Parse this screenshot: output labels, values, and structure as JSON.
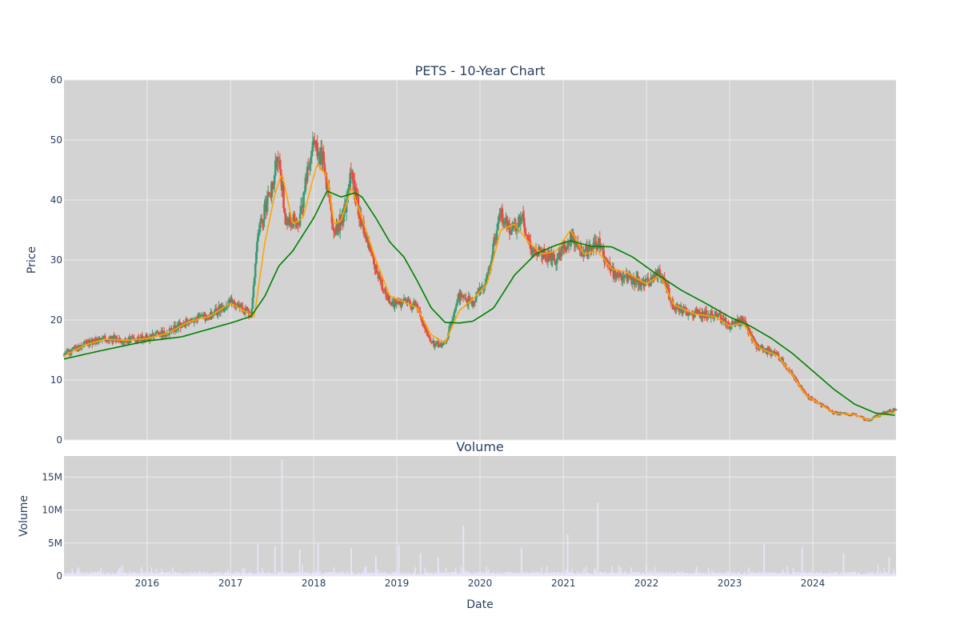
{
  "chart_data": [
    {
      "type": "candlestick",
      "title": "PETS - 10-Year Chart",
      "xlabel": "",
      "ylabel": "Price",
      "ylim": [
        0,
        60
      ],
      "y_ticks": [
        0,
        10,
        20,
        30,
        40,
        50,
        60
      ],
      "x_range": [
        "2015-01-01",
        "2024-12-31"
      ],
      "grid": true,
      "colors": {
        "plot_bg": "#d3d3d3",
        "gridline": "#ebebeb",
        "increasing": "#3d9970",
        "decreasing": "#e74c3c",
        "ma_short": "#ffa500",
        "ma_long": "#008000"
      },
      "series": [
        {
          "values": [
            [
              "2015-01-01",
              14.2
            ],
            [
              "2015-04-01",
              16.0
            ],
            [
              "2015-07-01",
              17.0
            ],
            [
              "2015-10-01",
              16.5
            ],
            [
              "2016-01-01",
              17.0
            ],
            [
              "2016-04-01",
              18.0
            ],
            [
              "2016-07-01",
              20.0
            ],
            [
              "2016-10-01",
              20.5
            ],
            [
              "2017-01-01",
              23.0
            ],
            [
              "2017-04-01",
              21.0
            ],
            [
              "2017-05-01",
              35.0
            ],
            [
              "2017-07-01",
              42.0
            ],
            [
              "2017-08-01",
              48.0
            ],
            [
              "2017-09-01",
              36.0
            ],
            [
              "2017-11-01",
              37.0
            ],
            [
              "2018-01-01",
              50.0
            ],
            [
              "2018-02-15",
              46.0
            ],
            [
              "2018-04-01",
              34.0
            ],
            [
              "2018-05-15",
              38.0
            ],
            [
              "2018-06-15",
              44.0
            ],
            [
              "2018-08-01",
              36.0
            ],
            [
              "2018-10-01",
              28.0
            ],
            [
              "2018-12-01",
              23.0
            ],
            [
              "2019-02-01",
              23.0
            ],
            [
              "2019-04-01",
              22.0
            ],
            [
              "2019-06-01",
              16.0
            ],
            [
              "2019-08-01",
              16.0
            ],
            [
              "2019-10-01",
              24.0
            ],
            [
              "2019-12-01",
              23.0
            ],
            [
              "2020-02-01",
              27.0
            ],
            [
              "2020-04-01",
              38.0
            ],
            [
              "2020-05-15",
              35.0
            ],
            [
              "2020-07-01",
              37.0
            ],
            [
              "2020-08-15",
              32.0
            ],
            [
              "2020-10-01",
              31.0
            ],
            [
              "2020-12-01",
              30.0
            ],
            [
              "2021-02-01",
              34.0
            ],
            [
              "2021-04-01",
              31.0
            ],
            [
              "2021-06-01",
              33.0
            ],
            [
              "2021-08-01",
              28.0
            ],
            [
              "2021-10-01",
              27.0
            ],
            [
              "2022-01-01",
              26.0
            ],
            [
              "2022-03-01",
              28.0
            ],
            [
              "2022-05-01",
              22.0
            ],
            [
              "2022-08-01",
              21.0
            ],
            [
              "2022-11-01",
              21.0
            ],
            [
              "2023-01-01",
              19.0
            ],
            [
              "2023-03-01",
              20.0
            ],
            [
              "2023-05-01",
              15.5
            ],
            [
              "2023-08-01",
              14.0
            ],
            [
              "2023-10-01",
              11.0
            ],
            [
              "2023-12-01",
              7.5
            ],
            [
              "2024-02-01",
              6.0
            ],
            [
              "2024-04-01",
              4.5
            ],
            [
              "2024-07-01",
              4.2
            ],
            [
              "2024-09-01",
              3.3
            ],
            [
              "2024-11-01",
              4.5
            ],
            [
              "2024-12-31",
              5.0
            ]
          ]
        },
        {
          "values": [
            [
              "2015-01-01",
              14.0
            ],
            [
              "2015-04-01",
              15.8
            ],
            [
              "2015-07-01",
              16.8
            ],
            [
              "2015-10-01",
              16.6
            ],
            [
              "2016-01-01",
              16.9
            ],
            [
              "2016-04-01",
              17.8
            ],
            [
              "2016-07-01",
              19.7
            ],
            [
              "2016-10-01",
              20.6
            ],
            [
              "2017-01-01",
              22.8
            ],
            [
              "2017-03-01",
              21.5
            ],
            [
              "2017-04-15",
              20.5
            ],
            [
              "2017-06-01",
              33.0
            ],
            [
              "2017-07-15",
              41.0
            ],
            [
              "2017-08-15",
              44.5
            ],
            [
              "2017-10-01",
              36.0
            ],
            [
              "2017-11-15",
              37.0
            ],
            [
              "2018-01-15",
              46.0
            ],
            [
              "2018-03-01",
              44.0
            ],
            [
              "2018-04-01",
              36.0
            ],
            [
              "2018-05-01",
              36.5
            ],
            [
              "2018-06-15",
              42.0
            ],
            [
              "2018-08-01",
              37.0
            ],
            [
              "2018-10-01",
              30.0
            ],
            [
              "2018-12-01",
              24.0
            ],
            [
              "2019-02-01",
              23.0
            ],
            [
              "2019-04-01",
              22.0
            ],
            [
              "2019-06-01",
              17.5
            ],
            [
              "2019-08-01",
              16.2
            ],
            [
              "2019-10-01",
              21.5
            ],
            [
              "2019-12-01",
              23.5
            ],
            [
              "2020-02-01",
              26.0
            ],
            [
              "2020-04-01",
              35.0
            ],
            [
              "2020-06-01",
              36.0
            ],
            [
              "2020-08-01",
              33.0
            ],
            [
              "2020-10-01",
              31.0
            ],
            [
              "2020-12-01",
              31.5
            ],
            [
              "2021-02-01",
              35.0
            ],
            [
              "2021-04-01",
              31.0
            ],
            [
              "2021-06-01",
              31.5
            ],
            [
              "2021-08-01",
              28.5
            ],
            [
              "2021-10-01",
              28.0
            ],
            [
              "2022-01-01",
              26.0
            ],
            [
              "2022-03-01",
              27.5
            ],
            [
              "2022-05-01",
              22.5
            ],
            [
              "2022-08-01",
              21.0
            ],
            [
              "2022-11-01",
              20.5
            ],
            [
              "2023-01-01",
              19.0
            ],
            [
              "2023-03-01",
              19.5
            ],
            [
              "2023-05-01",
              15.5
            ],
            [
              "2023-08-01",
              14.0
            ],
            [
              "2023-10-01",
              11.0
            ],
            [
              "2023-12-01",
              7.5
            ],
            [
              "2024-02-01",
              6.0
            ],
            [
              "2024-04-01",
              4.5
            ],
            [
              "2024-07-01",
              4.2
            ],
            [
              "2024-09-01",
              3.3
            ],
            [
              "2024-11-01",
              4.2
            ],
            [
              "2024-12-31",
              4.6
            ]
          ]
        },
        {
          "values": [
            [
              "2015-01-01",
              13.5
            ],
            [
              "2015-06-01",
              14.8
            ],
            [
              "2016-01-01",
              16.5
            ],
            [
              "2016-06-01",
              17.2
            ],
            [
              "2017-01-01",
              19.5
            ],
            [
              "2017-04-01",
              20.6
            ],
            [
              "2017-06-01",
              24.0
            ],
            [
              "2017-08-01",
              29.0
            ],
            [
              "2017-10-01",
              31.5
            ],
            [
              "2018-01-01",
              37.0
            ],
            [
              "2018-03-01",
              41.5
            ],
            [
              "2018-05-01",
              40.5
            ],
            [
              "2018-07-01",
              41.2
            ],
            [
              "2018-08-01",
              40.5
            ],
            [
              "2018-10-01",
              37.0
            ],
            [
              "2018-12-01",
              33.0
            ],
            [
              "2019-02-01",
              30.5
            ],
            [
              "2019-04-01",
              26.5
            ],
            [
              "2019-06-01",
              22.0
            ],
            [
              "2019-08-01",
              19.6
            ],
            [
              "2019-10-01",
              19.5
            ],
            [
              "2019-12-01",
              19.8
            ],
            [
              "2020-03-01",
              22.0
            ],
            [
              "2020-06-01",
              27.5
            ],
            [
              "2020-09-01",
              31.0
            ],
            [
              "2020-12-01",
              32.5
            ],
            [
              "2021-02-01",
              33.2
            ],
            [
              "2021-05-01",
              32.3
            ],
            [
              "2021-08-01",
              32.2
            ],
            [
              "2021-11-01",
              30.5
            ],
            [
              "2022-02-01",
              28.0
            ],
            [
              "2022-06-01",
              25.0
            ],
            [
              "2022-10-01",
              22.5
            ],
            [
              "2023-01-01",
              20.5
            ],
            [
              "2023-04-01",
              19.0
            ],
            [
              "2023-07-01",
              17.0
            ],
            [
              "2023-10-01",
              14.5
            ],
            [
              "2024-01-01",
              11.5
            ],
            [
              "2024-04-01",
              8.5
            ],
            [
              "2024-07-01",
              6.0
            ],
            [
              "2024-10-01",
              4.5
            ],
            [
              "2024-12-31",
              4.1
            ]
          ]
        }
      ]
    },
    {
      "type": "bar",
      "title": "Volume",
      "xlabel": "Date",
      "ylabel": "Volume",
      "ylim": [
        0,
        18.2
      ],
      "unit": "M",
      "y_ticks": [
        0,
        5,
        10,
        15
      ],
      "y_tick_labels": [
        "0",
        "5M",
        "10M",
        "15M"
      ],
      "x_ticks": [
        "2016-01-01",
        "2017-01-01",
        "2018-01-01",
        "2019-01-01",
        "2020-01-01",
        "2021-01-01",
        "2022-01-01",
        "2023-01-01",
        "2024-01-01"
      ],
      "x_tick_labels": [
        "2016",
        "2017",
        "2018",
        "2019",
        "2020",
        "2021",
        "2022",
        "2023",
        "2024"
      ],
      "x_range": [
        "2015-01-01",
        "2024-12-31"
      ],
      "grid": true,
      "colors": {
        "plot_bg": "#d3d3d3",
        "gridline": "#ebebeb",
        "bar": "#e6e6fa"
      },
      "peaks": [
        [
          "2017-05-01",
          4.8
        ],
        [
          "2017-07-15",
          4.5
        ],
        [
          "2017-08-15",
          17.7
        ],
        [
          "2017-11-01",
          4.0
        ],
        [
          "2018-01-20",
          5.0
        ],
        [
          "2018-06-15",
          4.2
        ],
        [
          "2018-10-01",
          3.0
        ],
        [
          "2019-01-10",
          4.7
        ],
        [
          "2019-04-15",
          3.5
        ],
        [
          "2019-07-01",
          2.8
        ],
        [
          "2019-10-20",
          7.6
        ],
        [
          "2020-07-01",
          4.3
        ],
        [
          "2021-01-20",
          6.3
        ],
        [
          "2021-06-01",
          11.1
        ],
        [
          "2021-09-01",
          1.6
        ],
        [
          "2022-01-01",
          1.6
        ],
        [
          "2023-06-01",
          4.9
        ],
        [
          "2023-11-15",
          4.3
        ],
        [
          "2024-05-15",
          3.5
        ],
        [
          "2024-12-01",
          2.9
        ]
      ]
    }
  ]
}
